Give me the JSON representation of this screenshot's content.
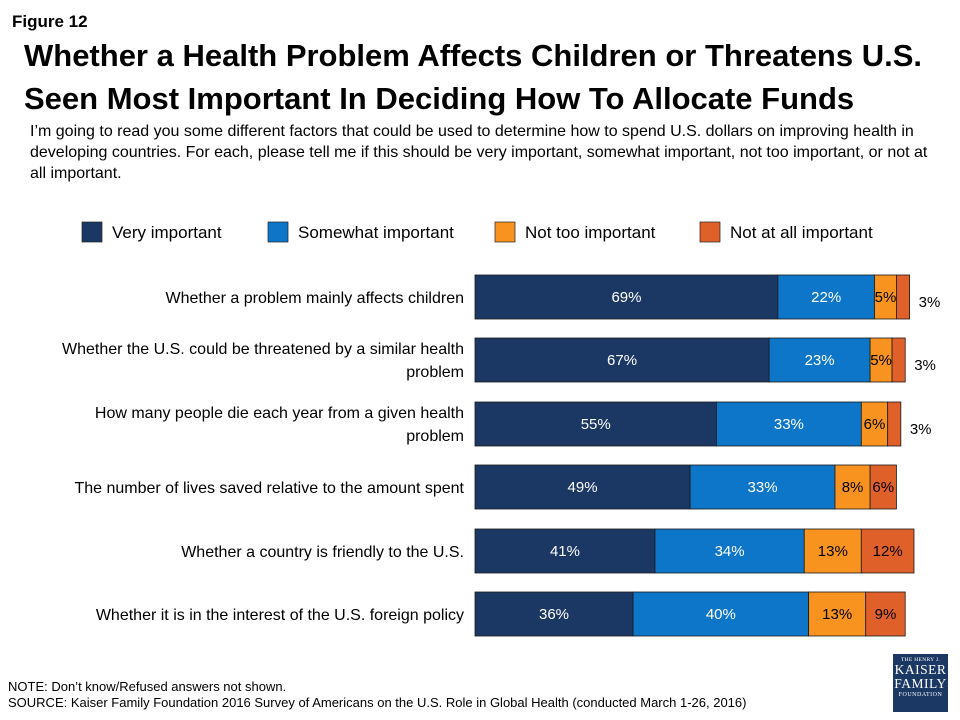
{
  "figure_label": "Figure 12",
  "title": "Whether a Health Problem Affects Children or Threatens U.S. Seen Most Important In Deciding How To Allocate Funds",
  "question": "I’m going to read you some different factors that could be used to determine how to spend U.S. dollars on improving health in developing countries. For each, please tell me if this should be very important, somewhat important, not too important, or not at all important.",
  "note": "NOTE: Don’t know/Refused answers not shown.",
  "source": "SOURCE: Kaiser Family Foundation 2016 Survey of Americans on the U.S. Role in Global Health (conducted March 1-26, 2016)",
  "logo": {
    "line1": "THE HENRY J.",
    "line2": "KAISER",
    "line3": "FAMILY",
    "line4": "FOUNDATION"
  },
  "chart_data": {
    "type": "bar",
    "orientation": "horizontal",
    "stacked": true,
    "legend_position": "top",
    "categories": [
      [
        "Whether a problem mainly affects children"
      ],
      [
        "Whether the U.S. could be threatened by a similar health",
        "problem"
      ],
      [
        "How many people die each year from a given health",
        "problem"
      ],
      [
        "The number of lives saved relative to the amount spent"
      ],
      [
        "Whether a country is friendly to the U.S."
      ],
      [
        "Whether it is in the interest of the U.S. foreign policy"
      ]
    ],
    "series": [
      {
        "name": "Very important",
        "color": "#1b3864",
        "values": [
          69,
          67,
          55,
          49,
          41,
          36
        ]
      },
      {
        "name": "Somewhat important",
        "color": "#0e76c9",
        "values": [
          22,
          23,
          33,
          33,
          34,
          40
        ]
      },
      {
        "name": "Not too important",
        "color": "#f7931e",
        "values": [
          5,
          5,
          6,
          8,
          13,
          13
        ]
      },
      {
        "name": "Not at all important",
        "color": "#e0602a",
        "values": [
          3,
          3,
          3,
          6,
          12,
          9
        ]
      }
    ],
    "value_suffix": "%"
  }
}
